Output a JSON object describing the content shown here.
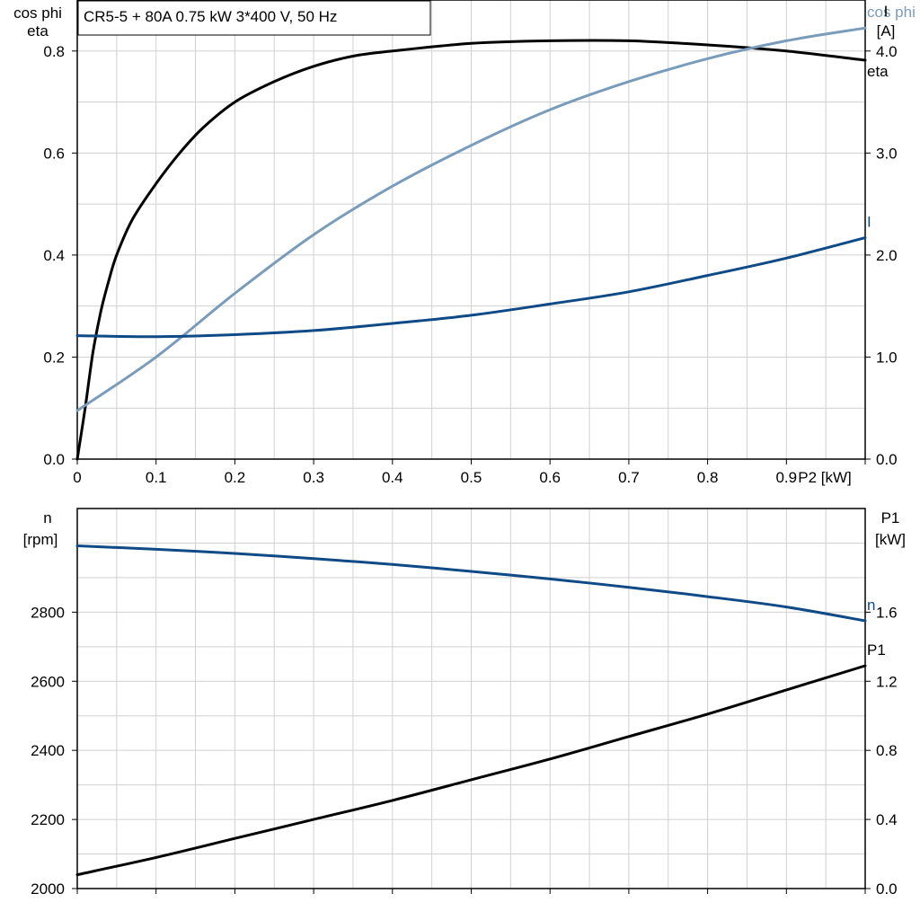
{
  "title": "CR5-5 + 80A   0.75 kW   3*400 V, 50 Hz",
  "colors": {
    "black": "#000000",
    "light_blue": "#7a9cbb",
    "dark_blue": "#0e4a86",
    "grid": "#d0d0d0"
  },
  "chart_data": [
    {
      "type": "line",
      "name_panel": "top",
      "xlabel": "P2 [kW]",
      "x_ticks": [
        "0",
        "0.1",
        "0.2",
        "0.3",
        "0.4",
        "0.5",
        "0.6",
        "0.7",
        "0.8",
        "0.9"
      ],
      "xlim": [
        0,
        1.0
      ],
      "ylabel_left": [
        "cos phi",
        "eta"
      ],
      "ylim_left": [
        0,
        0.9
      ],
      "y_ticks_left": [
        "0.0",
        "0.2",
        "0.4",
        "0.6",
        "0.8"
      ],
      "ylabel_right": [
        "I",
        "[A]"
      ],
      "ylim_right": [
        0,
        4.5
      ],
      "y_ticks_right": [
        "0.0",
        "1.0",
        "2.0",
        "3.0",
        "4.0"
      ],
      "grid": true,
      "series": [
        {
          "name": "eta",
          "axis": "left",
          "color": "#000000",
          "x": [
            0,
            0.01,
            0.02,
            0.03,
            0.04,
            0.05,
            0.07,
            0.1,
            0.13,
            0.16,
            0.2,
            0.25,
            0.3,
            0.35,
            0.4,
            0.5,
            0.6,
            0.7,
            0.8,
            0.9,
            1.0
          ],
          "y": [
            0,
            0.1,
            0.21,
            0.29,
            0.35,
            0.4,
            0.47,
            0.54,
            0.6,
            0.65,
            0.7,
            0.74,
            0.77,
            0.79,
            0.8,
            0.815,
            0.82,
            0.82,
            0.812,
            0.8,
            0.782
          ]
        },
        {
          "name": "cos phi",
          "axis": "left",
          "color": "#7a9cbb",
          "x": [
            0,
            0.1,
            0.2,
            0.3,
            0.4,
            0.5,
            0.6,
            0.7,
            0.8,
            0.9,
            1.0
          ],
          "y": [
            0.095,
            0.2,
            0.325,
            0.44,
            0.535,
            0.615,
            0.685,
            0.74,
            0.785,
            0.82,
            0.845
          ]
        },
        {
          "name": "I",
          "axis": "right",
          "color": "#0e4a86",
          "x": [
            0,
            0.1,
            0.2,
            0.3,
            0.4,
            0.5,
            0.6,
            0.7,
            0.8,
            0.9,
            1.0
          ],
          "y": [
            1.21,
            1.2,
            1.22,
            1.26,
            1.33,
            1.41,
            1.52,
            1.64,
            1.8,
            1.97,
            2.17
          ]
        }
      ]
    },
    {
      "type": "line",
      "name_panel": "bottom",
      "xlim": [
        0,
        1.0
      ],
      "ylabel_left": [
        "n",
        "[rpm]"
      ],
      "ylim_left": [
        2000,
        3100
      ],
      "y_ticks_left": [
        "2000",
        "2200",
        "2400",
        "2600",
        "2800"
      ],
      "ylabel_right": [
        "P1",
        "[kW]"
      ],
      "ylim_right": [
        0,
        2.2
      ],
      "y_ticks_right": [
        "0.0",
        "0.4",
        "0.8",
        "1.2",
        "1.6"
      ],
      "grid": true,
      "series": [
        {
          "name": "n",
          "axis": "left",
          "color": "#0e4a86",
          "x": [
            0,
            0.1,
            0.2,
            0.3,
            0.4,
            0.5,
            0.6,
            0.7,
            0.8,
            0.9,
            1.0
          ],
          "y": [
            2992,
            2982,
            2970,
            2955,
            2938,
            2918,
            2896,
            2872,
            2845,
            2815,
            2775
          ]
        },
        {
          "name": "P1",
          "axis": "right",
          "color": "#000000",
          "x": [
            0,
            0.1,
            0.2,
            0.3,
            0.4,
            0.5,
            0.6,
            0.7,
            0.8,
            0.9,
            1.0
          ],
          "y": [
            0.08,
            0.18,
            0.29,
            0.4,
            0.51,
            0.63,
            0.75,
            0.88,
            1.01,
            1.15,
            1.29
          ]
        }
      ]
    }
  ]
}
